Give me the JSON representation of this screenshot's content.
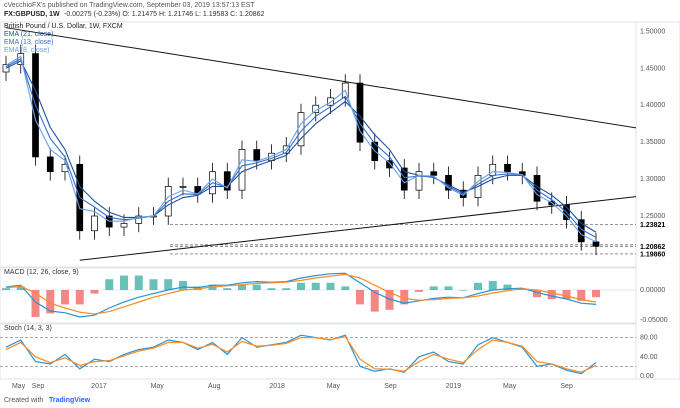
{
  "header": {
    "author_line": "cVecchioFX's published on TradingView.com, September 03, 2019 13:57:13 EST",
    "symbol": "FX:GBPUSD, 1W",
    "ohlc": "-0.00275 (-0.23%) O: 1.21475 H: 1.21746 L: 1.19583 C: 1.20862"
  },
  "main_pane": {
    "legend": [
      {
        "text": "British Pound / U.S. Dollar, 1W, FXCM"
      },
      {
        "text": "EMA (21, close)",
        "color": "#1f4e9c"
      },
      {
        "text": "EMA (13, close)",
        "color": "#3a6fc9"
      },
      {
        "text": "EMA (8, close)",
        "color": "#6aa0e8"
      }
    ],
    "price_ticks": [
      "1.50000",
      "1.45000",
      "1.40000",
      "1.35000",
      "1.30000",
      "1.25000",
      "1.20000"
    ],
    "level_tags": [
      "1.23821",
      "1.21088",
      "1.20862",
      "1.19860"
    ]
  },
  "macd_pane": {
    "legend": "MACD (12, 26, close, 9)",
    "ticks": [
      "0.00000",
      "-0.05000"
    ]
  },
  "stoch_pane": {
    "legend": "Stoch (14, 3, 3)",
    "ticks": [
      "80.00",
      "40.00",
      "0.00"
    ]
  },
  "time_axis": [
    "May",
    "Sep",
    "2017",
    "May",
    "Aug",
    "2018",
    "May",
    "Sep",
    "2019",
    "May",
    "Sep"
  ],
  "footer": {
    "created_with": "Created with",
    "brand": "TradingView"
  },
  "colors": {
    "candle": "#000000",
    "ema21": "#1f4e9c",
    "ema13": "#3a6fc9",
    "ema8": "#6aa0e8",
    "macd_line": "#2a93d5",
    "signal_line": "#ff8a22",
    "hist_pos": "#26a69a",
    "hist_neg": "#ef5350",
    "stoch_k": "#2a93d5",
    "stoch_d": "#ff8a22"
  },
  "chart_data": [
    {
      "type": "candlestick",
      "title": "British Pound / U.S. Dollar, 1W, FXCM",
      "ylim": [
        1.185,
        1.51
      ],
      "x": [
        "2016-05",
        "2016-06",
        "2016-07",
        "2016-08",
        "2016-09",
        "2016-10",
        "2016-11",
        "2016-12",
        "2017-01",
        "2017-02",
        "2017-03",
        "2017-04",
        "2017-05",
        "2017-06",
        "2017-07",
        "2017-08",
        "2017-09",
        "2017-10",
        "2017-11",
        "2017-12",
        "2018-01",
        "2018-02",
        "2018-03",
        "2018-04",
        "2018-05",
        "2018-06",
        "2018-07",
        "2018-08",
        "2018-09",
        "2018-10",
        "2018-11",
        "2018-12",
        "2019-01",
        "2019-02",
        "2019-03",
        "2019-04",
        "2019-05",
        "2019-06",
        "2019-07",
        "2019-08",
        "2019-09"
      ],
      "close": [
        1.455,
        1.47,
        1.33,
        1.31,
        1.32,
        1.23,
        1.25,
        1.235,
        1.24,
        1.25,
        1.25,
        1.29,
        1.29,
        1.28,
        1.31,
        1.285,
        1.34,
        1.325,
        1.335,
        1.345,
        1.39,
        1.4,
        1.41,
        1.43,
        1.35,
        1.325,
        1.315,
        1.285,
        1.31,
        1.305,
        1.285,
        1.275,
        1.305,
        1.32,
        1.31,
        1.305,
        1.27,
        1.265,
        1.245,
        1.215,
        1.209
      ],
      "series": [
        {
          "name": "EMA (21, close)",
          "values": [
            1.45,
            1.46,
            1.42,
            1.37,
            1.34,
            1.29,
            1.27,
            1.255,
            1.248,
            1.248,
            1.25,
            1.265,
            1.275,
            1.278,
            1.29,
            1.29,
            1.31,
            1.318,
            1.325,
            1.332,
            1.355,
            1.375,
            1.39,
            1.405,
            1.385,
            1.36,
            1.34,
            1.31,
            1.305,
            1.302,
            1.292,
            1.282,
            1.29,
            1.3,
            1.305,
            1.305,
            1.29,
            1.278,
            1.262,
            1.24,
            1.228
          ]
        },
        {
          "name": "EMA (13, close)",
          "values": [
            1.452,
            1.463,
            1.4,
            1.355,
            1.33,
            1.275,
            1.262,
            1.248,
            1.245,
            1.247,
            1.25,
            1.27,
            1.28,
            1.279,
            1.295,
            1.289,
            1.318,
            1.322,
            1.328,
            1.336,
            1.365,
            1.385,
            1.398,
            1.412,
            1.375,
            1.348,
            1.33,
            1.302,
            1.304,
            1.303,
            1.29,
            1.28,
            1.293,
            1.305,
            1.307,
            1.306,
            1.285,
            1.272,
            1.255,
            1.232,
            1.221
          ]
        },
        {
          "name": "EMA (8, close)",
          "values": [
            1.454,
            1.466,
            1.38,
            1.34,
            1.325,
            1.26,
            1.256,
            1.243,
            1.243,
            1.248,
            1.25,
            1.276,
            1.285,
            1.28,
            1.3,
            1.288,
            1.326,
            1.324,
            1.331,
            1.34,
            1.375,
            1.393,
            1.404,
            1.42,
            1.365,
            1.338,
            1.322,
            1.295,
            1.305,
            1.304,
            1.288,
            1.278,
            1.297,
            1.31,
            1.309,
            1.306,
            1.279,
            1.268,
            1.25,
            1.225,
            1.215
          ]
        }
      ],
      "trendlines": [
        {
          "from": [
            "2016-05",
            1.505
          ],
          "to": [
            "2019-09",
            1.378
          ]
        },
        {
          "from": [
            "2016-10",
            1.19
          ],
          "to": [
            "2019-09",
            1.27
          ]
        }
      ],
      "levels": [
        1.23821,
        1.21088,
        1.20862,
        1.1986
      ]
    },
    {
      "type": "line",
      "title": "MACD (12, 26, close, 9)",
      "ylim": [
        -0.05,
        0.03
      ],
      "series": [
        {
          "name": "MACD",
          "values": [
            0.005,
            0.008,
            -0.02,
            -0.035,
            -0.038,
            -0.045,
            -0.042,
            -0.03,
            -0.02,
            -0.012,
            -0.006,
            0.0,
            0.005,
            0.004,
            0.008,
            0.008,
            0.012,
            0.014,
            0.013,
            0.014,
            0.02,
            0.024,
            0.027,
            0.028,
            0.012,
            -0.004,
            -0.015,
            -0.022,
            -0.018,
            -0.014,
            -0.012,
            -0.013,
            -0.006,
            0.0,
            0.002,
            0.003,
            -0.004,
            -0.01,
            -0.015,
            -0.022,
            -0.024
          ]
        },
        {
          "name": "Signal",
          "values": [
            0.004,
            0.006,
            -0.005,
            -0.022,
            -0.03,
            -0.037,
            -0.04,
            -0.036,
            -0.028,
            -0.02,
            -0.012,
            -0.006,
            0.0,
            0.002,
            0.005,
            0.007,
            0.009,
            0.011,
            0.012,
            0.013,
            0.016,
            0.02,
            0.023,
            0.026,
            0.02,
            0.008,
            -0.004,
            -0.014,
            -0.017,
            -0.016,
            -0.014,
            -0.013,
            -0.01,
            -0.005,
            -0.001,
            0.002,
            0.0,
            -0.005,
            -0.01,
            -0.016,
            -0.02
          ]
        }
      ]
    },
    {
      "type": "line",
      "title": "Stoch (14, 3, 3)",
      "ylim": [
        0,
        100
      ],
      "series": [
        {
          "name": "%K",
          "values": [
            60,
            75,
            30,
            25,
            45,
            15,
            35,
            30,
            45,
            55,
            60,
            75,
            70,
            55,
            70,
            45,
            80,
            60,
            65,
            70,
            85,
            80,
            75,
            85,
            20,
            10,
            15,
            8,
            40,
            50,
            30,
            25,
            65,
            80,
            70,
            60,
            20,
            25,
            12,
            5,
            28
          ]
        },
        {
          "name": "%D",
          "values": [
            55,
            70,
            40,
            28,
            38,
            22,
            30,
            32,
            42,
            52,
            58,
            70,
            70,
            58,
            66,
            50,
            72,
            62,
            64,
            68,
            80,
            80,
            76,
            82,
            35,
            15,
            14,
            10,
            30,
            45,
            35,
            28,
            55,
            75,
            70,
            62,
            30,
            25,
            15,
            8,
            22
          ]
        }
      ]
    }
  ]
}
